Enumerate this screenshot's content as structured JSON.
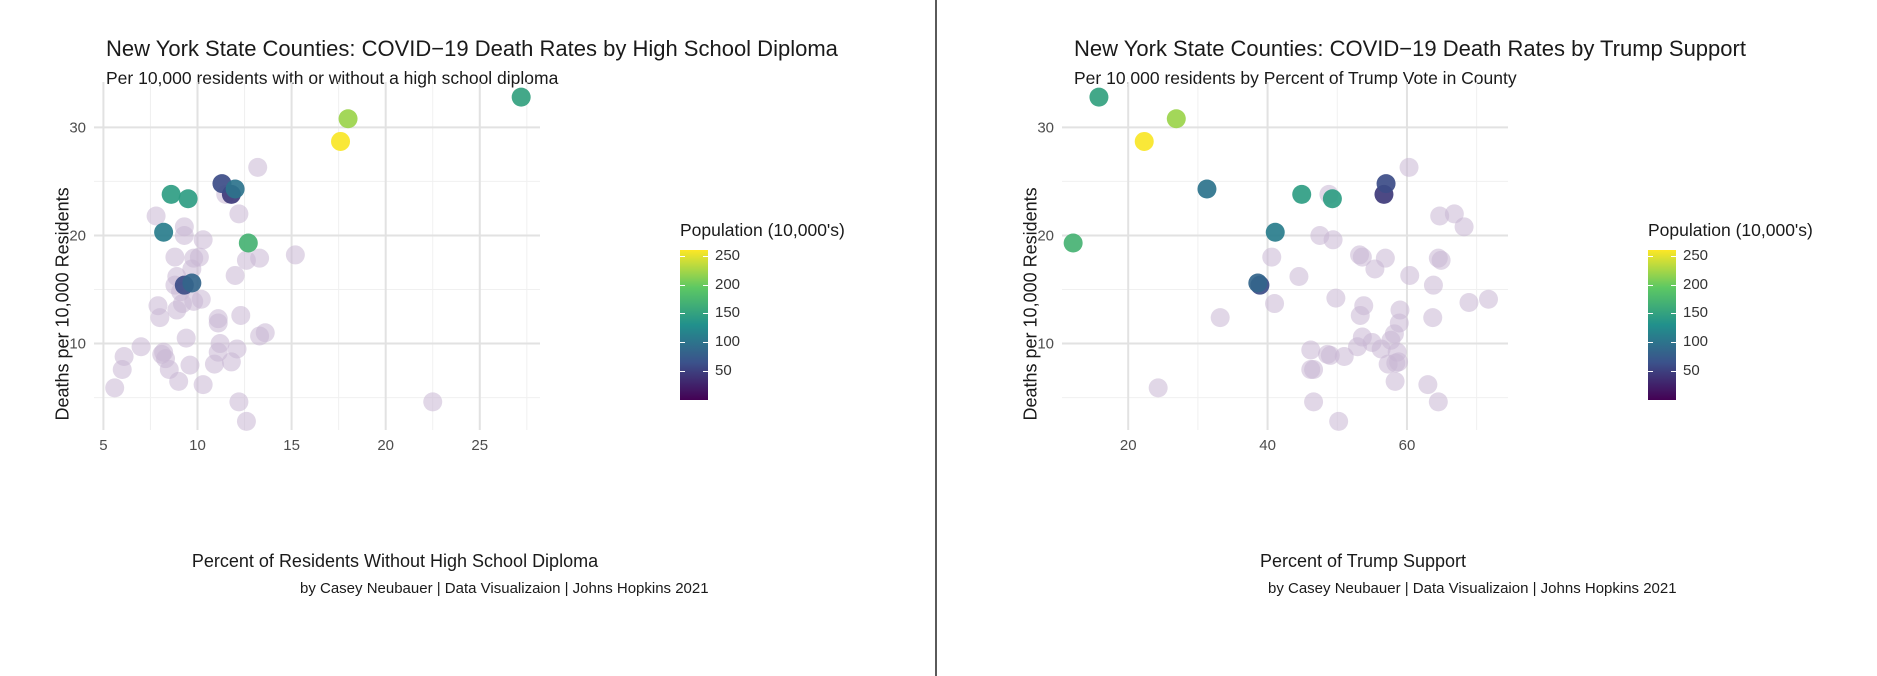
{
  "chart_data": [
    {
      "type": "scatter",
      "title": "New York State Counties: COVID−19 Death Rates by High School Diploma",
      "subtitle": "Per 10,000 residents with or without a high school diploma",
      "xlabel": "Percent of Residents Without High School Diploma",
      "ylabel": "Deaths per 10,000 Residents",
      "caption": "by Casey Neubauer | Data Visualizaion | Johns Hopkins 2021",
      "xlim": [
        4.5,
        28.2
      ],
      "ylim": [
        2.0,
        34.2
      ],
      "xticks": [
        5,
        10,
        15,
        20,
        25
      ],
      "yticks": [
        10,
        20,
        30
      ],
      "grid": true,
      "legend": {
        "title": "Population (10,000's)",
        "position": "right",
        "ticks": [
          50,
          100,
          150,
          200,
          250
        ],
        "range": [
          0,
          260
        ],
        "colormap": "viridis"
      },
      "points": [
        {
          "x": 27.2,
          "y": 32.8,
          "pop": 150
        },
        {
          "x": 18.0,
          "y": 30.8,
          "pop": 220
        },
        {
          "x": 17.6,
          "y": 28.7,
          "pop": 258
        },
        {
          "x": 8.6,
          "y": 23.8,
          "pop": 145
        },
        {
          "x": 9.5,
          "y": 23.4,
          "pop": 145
        },
        {
          "x": 8.2,
          "y": 20.3,
          "pop": 110
        },
        {
          "x": 12.7,
          "y": 19.3,
          "pop": 170
        },
        {
          "x": 12.0,
          "y": 24.3,
          "pop": 100
        },
        {
          "x": 9.7,
          "y": 15.6,
          "pop": 85
        },
        {
          "x": 9.3,
          "y": 15.4,
          "pop": 60
        },
        {
          "x": 11.3,
          "y": 24.8,
          "pop": 60
        },
        {
          "x": 11.8,
          "y": 23.8,
          "pop": 45
        },
        {
          "x": 13.2,
          "y": 26.3,
          "pop": 5
        },
        {
          "x": 11.5,
          "y": 23.8,
          "pop": 5
        },
        {
          "x": 7.8,
          "y": 21.8,
          "pop": 5
        },
        {
          "x": 12.2,
          "y": 22.0,
          "pop": 5
        },
        {
          "x": 9.3,
          "y": 20.8,
          "pop": 5
        },
        {
          "x": 9.3,
          "y": 20.0,
          "pop": 5
        },
        {
          "x": 10.3,
          "y": 19.6,
          "pop": 5
        },
        {
          "x": 9.8,
          "y": 17.9,
          "pop": 5
        },
        {
          "x": 10.1,
          "y": 18.0,
          "pop": 5
        },
        {
          "x": 8.8,
          "y": 18.0,
          "pop": 5
        },
        {
          "x": 12.6,
          "y": 17.7,
          "pop": 5
        },
        {
          "x": 13.3,
          "y": 17.9,
          "pop": 5
        },
        {
          "x": 15.2,
          "y": 18.2,
          "pop": 5
        },
        {
          "x": 9.7,
          "y": 16.9,
          "pop": 5
        },
        {
          "x": 12.0,
          "y": 16.3,
          "pop": 5
        },
        {
          "x": 8.9,
          "y": 16.2,
          "pop": 5
        },
        {
          "x": 8.8,
          "y": 15.4,
          "pop": 5
        },
        {
          "x": 9.1,
          "y": 14.8,
          "pop": 5
        },
        {
          "x": 9.8,
          "y": 13.9,
          "pop": 5
        },
        {
          "x": 10.2,
          "y": 14.1,
          "pop": 5
        },
        {
          "x": 9.2,
          "y": 13.7,
          "pop": 5
        },
        {
          "x": 7.9,
          "y": 13.5,
          "pop": 5
        },
        {
          "x": 8.0,
          "y": 12.4,
          "pop": 5
        },
        {
          "x": 8.9,
          "y": 13.1,
          "pop": 5
        },
        {
          "x": 11.1,
          "y": 12.3,
          "pop": 5
        },
        {
          "x": 11.1,
          "y": 11.9,
          "pop": 5
        },
        {
          "x": 12.3,
          "y": 12.6,
          "pop": 5
        },
        {
          "x": 13.6,
          "y": 11.0,
          "pop": 5
        },
        {
          "x": 13.3,
          "y": 10.7,
          "pop": 5
        },
        {
          "x": 9.4,
          "y": 10.5,
          "pop": 5
        },
        {
          "x": 11.2,
          "y": 10.0,
          "pop": 5
        },
        {
          "x": 7.0,
          "y": 9.7,
          "pop": 5
        },
        {
          "x": 8.2,
          "y": 9.2,
          "pop": 5
        },
        {
          "x": 8.3,
          "y": 8.6,
          "pop": 5
        },
        {
          "x": 8.1,
          "y": 9.0,
          "pop": 5
        },
        {
          "x": 11.1,
          "y": 9.2,
          "pop": 5
        },
        {
          "x": 12.1,
          "y": 9.5,
          "pop": 5
        },
        {
          "x": 6.1,
          "y": 8.8,
          "pop": 5
        },
        {
          "x": 11.8,
          "y": 8.3,
          "pop": 5
        },
        {
          "x": 10.9,
          "y": 8.1,
          "pop": 5
        },
        {
          "x": 9.6,
          "y": 8.0,
          "pop": 5
        },
        {
          "x": 6.0,
          "y": 7.6,
          "pop": 5
        },
        {
          "x": 8.5,
          "y": 7.6,
          "pop": 5
        },
        {
          "x": 9.0,
          "y": 6.5,
          "pop": 5
        },
        {
          "x": 10.3,
          "y": 6.2,
          "pop": 5
        },
        {
          "x": 5.6,
          "y": 5.9,
          "pop": 5
        },
        {
          "x": 12.2,
          "y": 4.6,
          "pop": 5
        },
        {
          "x": 22.5,
          "y": 4.6,
          "pop": 5
        },
        {
          "x": 12.6,
          "y": 2.8,
          "pop": 5
        }
      ]
    },
    {
      "type": "scatter",
      "title": "New York State Counties: COVID−19 Death Rates by Trump Support",
      "subtitle": "Per 10,000 residents by Percent of Trump Vote in County",
      "xlabel": "Percent of Trump Support",
      "ylabel": "Deaths per 10,000 Residents",
      "caption": "by Casey Neubauer | Data Visualizaion | Johns Hopkins 2021",
      "xlim": [
        10.5,
        74.5
      ],
      "ylim": [
        2.0,
        34.2
      ],
      "xticks": [
        20,
        40,
        60
      ],
      "yticks": [
        10,
        20,
        30
      ],
      "grid": true,
      "legend": {
        "title": "Population (10,000's)",
        "position": "right",
        "ticks": [
          50,
          100,
          150,
          200,
          250
        ],
        "range": [
          0,
          260
        ],
        "colormap": "viridis"
      },
      "points": [
        {
          "x": 15.8,
          "y": 32.8,
          "pop": 150
        },
        {
          "x": 26.9,
          "y": 30.8,
          "pop": 220
        },
        {
          "x": 22.3,
          "y": 28.7,
          "pop": 258
        },
        {
          "x": 31.3,
          "y": 24.3,
          "pop": 100
        },
        {
          "x": 44.9,
          "y": 23.8,
          "pop": 145
        },
        {
          "x": 49.3,
          "y": 23.4,
          "pop": 145
        },
        {
          "x": 12.1,
          "y": 19.3,
          "pop": 170
        },
        {
          "x": 41.1,
          "y": 20.3,
          "pop": 110
        },
        {
          "x": 38.6,
          "y": 15.6,
          "pop": 85
        },
        {
          "x": 38.9,
          "y": 15.4,
          "pop": 60
        },
        {
          "x": 57.0,
          "y": 24.8,
          "pop": 60
        },
        {
          "x": 56.7,
          "y": 23.8,
          "pop": 45
        },
        {
          "x": 48.8,
          "y": 23.8,
          "pop": 5
        },
        {
          "x": 60.3,
          "y": 26.3,
          "pop": 5
        },
        {
          "x": 64.7,
          "y": 21.8,
          "pop": 5
        },
        {
          "x": 66.8,
          "y": 22.0,
          "pop": 5
        },
        {
          "x": 68.2,
          "y": 20.8,
          "pop": 5
        },
        {
          "x": 47.5,
          "y": 20.0,
          "pop": 5
        },
        {
          "x": 49.4,
          "y": 19.6,
          "pop": 5
        },
        {
          "x": 40.6,
          "y": 18.0,
          "pop": 5
        },
        {
          "x": 53.2,
          "y": 18.2,
          "pop": 5
        },
        {
          "x": 53.6,
          "y": 18.0,
          "pop": 5
        },
        {
          "x": 56.9,
          "y": 17.9,
          "pop": 5
        },
        {
          "x": 64.5,
          "y": 17.9,
          "pop": 5
        },
        {
          "x": 64.9,
          "y": 17.7,
          "pop": 5
        },
        {
          "x": 55.4,
          "y": 16.9,
          "pop": 5
        },
        {
          "x": 60.4,
          "y": 16.3,
          "pop": 5
        },
        {
          "x": 44.5,
          "y": 16.2,
          "pop": 5
        },
        {
          "x": 63.8,
          "y": 15.4,
          "pop": 5
        },
        {
          "x": 49.8,
          "y": 14.2,
          "pop": 5
        },
        {
          "x": 41.0,
          "y": 13.7,
          "pop": 5
        },
        {
          "x": 53.8,
          "y": 13.5,
          "pop": 5
        },
        {
          "x": 59.0,
          "y": 13.1,
          "pop": 5
        },
        {
          "x": 68.9,
          "y": 13.8,
          "pop": 5
        },
        {
          "x": 71.7,
          "y": 14.1,
          "pop": 5
        },
        {
          "x": 33.2,
          "y": 12.4,
          "pop": 5
        },
        {
          "x": 53.3,
          "y": 12.6,
          "pop": 5
        },
        {
          "x": 63.7,
          "y": 12.4,
          "pop": 5
        },
        {
          "x": 58.9,
          "y": 11.9,
          "pop": 5
        },
        {
          "x": 58.2,
          "y": 10.9,
          "pop": 5
        },
        {
          "x": 53.6,
          "y": 10.6,
          "pop": 5
        },
        {
          "x": 57.7,
          "y": 10.3,
          "pop": 5
        },
        {
          "x": 55.0,
          "y": 10.1,
          "pop": 5
        },
        {
          "x": 52.9,
          "y": 9.7,
          "pop": 5
        },
        {
          "x": 46.2,
          "y": 9.4,
          "pop": 5
        },
        {
          "x": 56.3,
          "y": 9.5,
          "pop": 5
        },
        {
          "x": 48.6,
          "y": 9.0,
          "pop": 5
        },
        {
          "x": 49.0,
          "y": 8.9,
          "pop": 5
        },
        {
          "x": 51.0,
          "y": 8.8,
          "pop": 5
        },
        {
          "x": 58.6,
          "y": 9.2,
          "pop": 5
        },
        {
          "x": 57.3,
          "y": 8.1,
          "pop": 5
        },
        {
          "x": 58.4,
          "y": 8.2,
          "pop": 5
        },
        {
          "x": 58.8,
          "y": 8.3,
          "pop": 5
        },
        {
          "x": 46.2,
          "y": 7.6,
          "pop": 5
        },
        {
          "x": 46.6,
          "y": 7.6,
          "pop": 5
        },
        {
          "x": 58.3,
          "y": 6.5,
          "pop": 5
        },
        {
          "x": 63.0,
          "y": 6.2,
          "pop": 5
        },
        {
          "x": 24.3,
          "y": 5.9,
          "pop": 5
        },
        {
          "x": 46.6,
          "y": 4.6,
          "pop": 5
        },
        {
          "x": 64.5,
          "y": 4.6,
          "pop": 5
        },
        {
          "x": 50.2,
          "y": 2.8,
          "pop": 5
        }
      ]
    }
  ]
}
